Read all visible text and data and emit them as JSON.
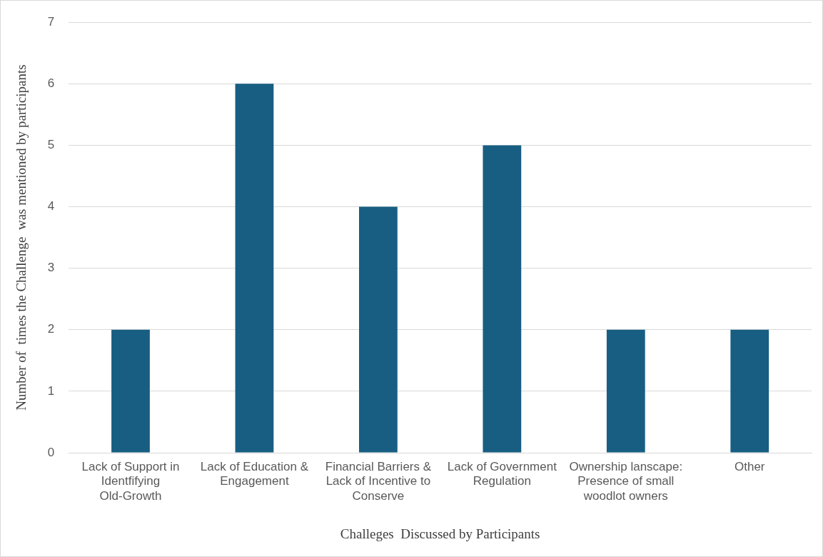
{
  "chart_data": {
    "type": "bar",
    "categories": [
      "Lack of Support in Identfifying Old-Growth",
      "Lack of Education & Engagement",
      "Financial Barriers & Lack of Incentive to Conserve",
      "Lack of Government Regulation",
      "Ownership lanscape: Presence of small woodlot owners",
      "Other"
    ],
    "values": [
      2,
      6,
      4,
      5,
      2,
      2
    ],
    "color": "#175e82",
    "xlabel": "Challeges  Discussed by Participants",
    "ylabel": "Number of  times the Challenge  was mentioned by participants",
    "ylim": [
      0,
      7
    ],
    "yticks": [
      0,
      1,
      2,
      3,
      4,
      5,
      6,
      7
    ],
    "grid": "y",
    "legend": false
  }
}
